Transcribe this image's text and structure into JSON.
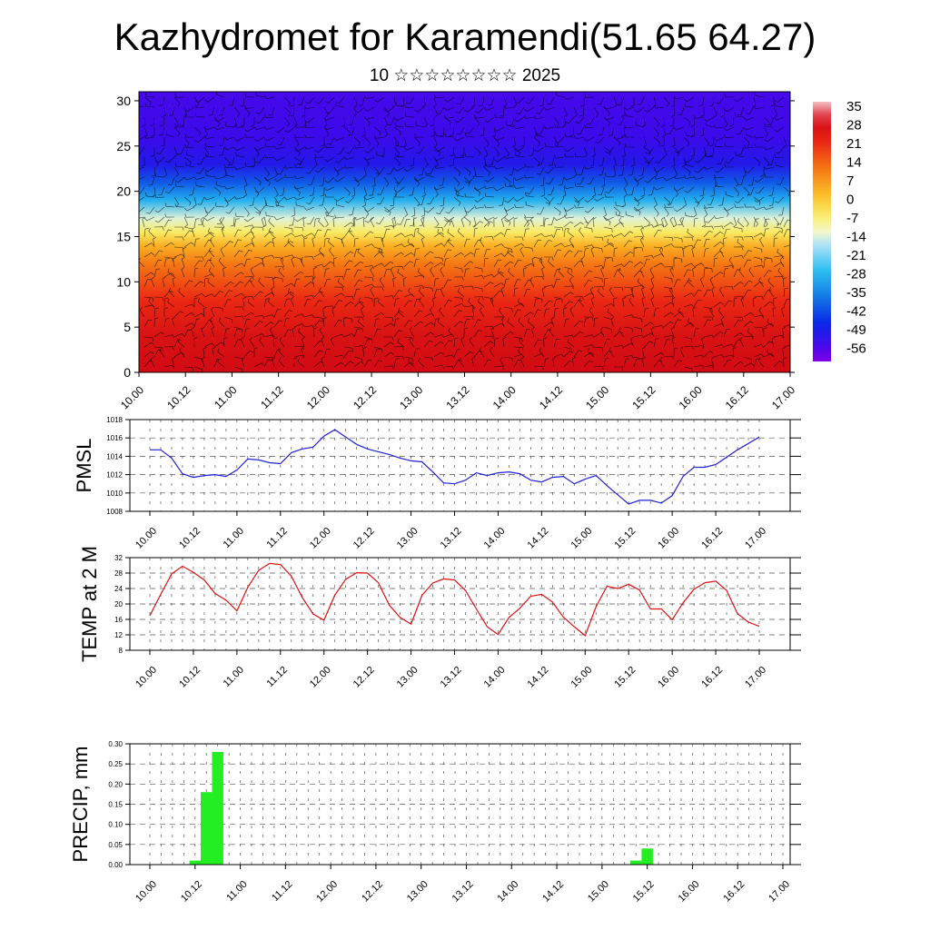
{
  "title": "Kazhydromet for Karamendi(51.65 64.27)",
  "subtitle": "10 ☆☆☆☆☆☆☆☆ 2025",
  "time_labels": [
    "10.00",
    "10.12",
    "11.00",
    "11.12",
    "12.00",
    "12.12",
    "13.00",
    "13.12",
    "14.00",
    "14.12",
    "15.00",
    "15.12",
    "16.00",
    "16.12",
    "17.00"
  ],
  "chart_data": [
    {
      "type": "heatmap",
      "y_ticks": [
        0,
        5,
        10,
        15,
        20,
        25,
        30
      ],
      "ylim": [
        0,
        31
      ],
      "x_range": [
        0,
        14
      ],
      "colorbar_labels": [
        "35",
        "28",
        "21",
        "14",
        "7",
        "0",
        "-7",
        "-14",
        "-21",
        "-28",
        "-35",
        "-42",
        "-49",
        "-56"
      ],
      "colorbar_range": [
        -63,
        38
      ],
      "approx_profile": [
        [
          0,
          30
        ],
        [
          4,
          28
        ],
        [
          8,
          22
        ],
        [
          12,
          12
        ],
        [
          14,
          4
        ],
        [
          15.5,
          -6
        ],
        [
          17,
          -14
        ],
        [
          19,
          -30
        ],
        [
          21,
          -42
        ],
        [
          23,
          -52
        ],
        [
          26,
          -56
        ],
        [
          31,
          -57
        ]
      ],
      "wind_barbs": true
    },
    {
      "type": "line",
      "ylabel": "PMSL",
      "ylim": [
        1008,
        1018
      ],
      "y_ticks": [
        "1008",
        "1010",
        "1012",
        "1014",
        "1016",
        "1018"
      ],
      "x_range": [
        0,
        14
      ],
      "color": "#1f1fd6",
      "points": [
        [
          0,
          1014.7
        ],
        [
          0.25,
          1014.7
        ],
        [
          0.5,
          1013.8
        ],
        [
          0.75,
          1012.1
        ],
        [
          1,
          1011.7
        ],
        [
          1.25,
          1011.9
        ],
        [
          1.5,
          1012
        ],
        [
          1.75,
          1011.8
        ],
        [
          2,
          1012.5
        ],
        [
          2.25,
          1013.7
        ],
        [
          2.5,
          1013.6
        ],
        [
          2.75,
          1013.3
        ],
        [
          3,
          1013.2
        ],
        [
          3.25,
          1014.4
        ],
        [
          3.5,
          1014.8
        ],
        [
          3.75,
          1015
        ],
        [
          4,
          1016.2
        ],
        [
          4.25,
          1016.9
        ],
        [
          4.5,
          1016.1
        ],
        [
          4.75,
          1015.3
        ],
        [
          5,
          1014.8
        ],
        [
          5.25,
          1014.5
        ],
        [
          5.5,
          1014.2
        ],
        [
          5.75,
          1013.8
        ],
        [
          6,
          1013.5
        ],
        [
          6.25,
          1013.4
        ],
        [
          6.5,
          1012.3
        ],
        [
          6.75,
          1011.1
        ],
        [
          7,
          1011
        ],
        [
          7.25,
          1011.4
        ],
        [
          7.5,
          1012.2
        ],
        [
          7.75,
          1011.9
        ],
        [
          8,
          1012.2
        ],
        [
          8.25,
          1012.3
        ],
        [
          8.5,
          1012.1
        ],
        [
          8.75,
          1011.4
        ],
        [
          9,
          1011.2
        ],
        [
          9.25,
          1011.7
        ],
        [
          9.5,
          1011.8
        ],
        [
          9.75,
          1011
        ],
        [
          10,
          1011.5
        ],
        [
          10.25,
          1011.9
        ],
        [
          10.5,
          1010.8
        ],
        [
          10.75,
          1009.8
        ],
        [
          11,
          1008.8
        ],
        [
          11.25,
          1009.2
        ],
        [
          11.5,
          1009.2
        ],
        [
          11.75,
          1008.9
        ],
        [
          12,
          1009.7
        ],
        [
          12.25,
          1011.8
        ],
        [
          12.5,
          1012.8
        ],
        [
          12.75,
          1012.8
        ],
        [
          13,
          1013.1
        ],
        [
          13.25,
          1013.9
        ],
        [
          13.5,
          1014.7
        ],
        [
          13.75,
          1015.4
        ],
        [
          14,
          1016.1
        ]
      ]
    },
    {
      "type": "line",
      "ylabel": "TEMP at 2 M",
      "ylim": [
        8,
        32
      ],
      "y_ticks": [
        "8",
        "12",
        "16",
        "20",
        "24",
        "28",
        "32"
      ],
      "x_range": [
        0,
        14
      ],
      "color": "#e01010",
      "points": [
        [
          0,
          17
        ],
        [
          0.25,
          22.5
        ],
        [
          0.5,
          27.8
        ],
        [
          0.75,
          29.8
        ],
        [
          1,
          28.2
        ],
        [
          1.25,
          26.2
        ],
        [
          1.5,
          22.7
        ],
        [
          1.75,
          21
        ],
        [
          2,
          18.2
        ],
        [
          2.25,
          24.3
        ],
        [
          2.5,
          28.7
        ],
        [
          2.75,
          30.5
        ],
        [
          3,
          30.2
        ],
        [
          3.25,
          27.2
        ],
        [
          3.5,
          21.7
        ],
        [
          3.75,
          17.4
        ],
        [
          4,
          15.8
        ],
        [
          4.25,
          22.3
        ],
        [
          4.5,
          26.4
        ],
        [
          4.75,
          28.1
        ],
        [
          5,
          28
        ],
        [
          5.25,
          25.5
        ],
        [
          5.5,
          19.7
        ],
        [
          5.75,
          16.5
        ],
        [
          6,
          14.8
        ],
        [
          6.25,
          22.2
        ],
        [
          6.5,
          25.4
        ],
        [
          6.75,
          26.5
        ],
        [
          7,
          26.2
        ],
        [
          7.25,
          23.5
        ],
        [
          7.5,
          18.7
        ],
        [
          7.75,
          14.1
        ],
        [
          8,
          12.1
        ],
        [
          8.25,
          16.5
        ],
        [
          8.5,
          18.9
        ],
        [
          8.75,
          22
        ],
        [
          9,
          22.5
        ],
        [
          9.25,
          20.5
        ],
        [
          9.5,
          16.6
        ],
        [
          9.75,
          14.1
        ],
        [
          10,
          11.8
        ],
        [
          10.25,
          19.3
        ],
        [
          10.5,
          24.6
        ],
        [
          10.75,
          24
        ],
        [
          11,
          25.1
        ],
        [
          11.25,
          23.6
        ],
        [
          11.5,
          18.7
        ],
        [
          11.75,
          18.7
        ],
        [
          12,
          15.9
        ],
        [
          12.25,
          20.3
        ],
        [
          12.5,
          23.8
        ],
        [
          12.75,
          25.5
        ],
        [
          13,
          25.9
        ],
        [
          13.25,
          23.5
        ],
        [
          13.5,
          17.5
        ],
        [
          13.75,
          15.3
        ],
        [
          14,
          14.2
        ]
      ]
    },
    {
      "type": "bar",
      "ylabel": "PRECIP, mm",
      "ylim": [
        0,
        0.3
      ],
      "y_ticks": [
        "0.00",
        "0.05",
        "0.10",
        "0.15",
        "0.20",
        "0.25",
        "0.30"
      ],
      "x_range": [
        0,
        14
      ],
      "color": "#22ee22",
      "bars": [
        [
          1,
          0.01
        ],
        [
          1.25,
          0.18
        ],
        [
          1.5,
          0.28
        ],
        [
          10.75,
          0.01
        ],
        [
          11,
          0.04
        ]
      ]
    }
  ]
}
